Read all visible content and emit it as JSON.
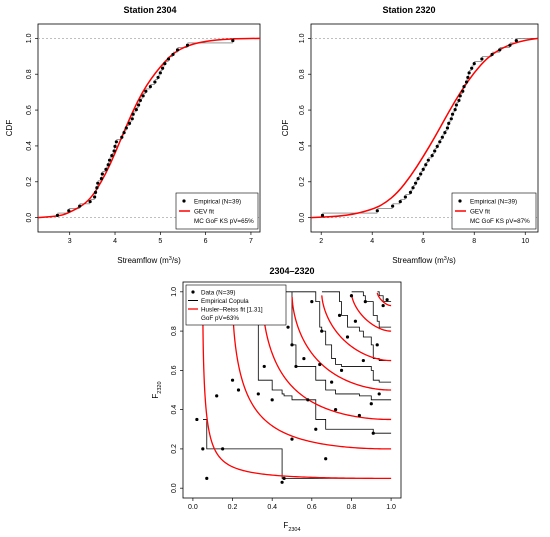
{
  "chart_data": [
    {
      "type": "line",
      "title": "Station 2304",
      "xlabel": "Streamflow (m³/s)",
      "ylabel": "CDF",
      "xlim": [
        2.3,
        7.2
      ],
      "ylim": [
        -0.08,
        1.08
      ],
      "xticks": [
        3,
        4,
        5,
        6,
        7
      ],
      "yticks": [
        0.0,
        0.2,
        0.4,
        0.6,
        0.8,
        1.0
      ],
      "grid": false,
      "legend_position": "bottom-right",
      "legend": {
        "empirical": "Empirical (N=39)",
        "fit": "GEV fit",
        "gof": "MC GoF KS pV=65%"
      },
      "empirical_x": [
        2.73,
        2.98,
        3.22,
        3.45,
        3.55,
        3.57,
        3.6,
        3.62,
        3.7,
        3.72,
        3.8,
        3.85,
        3.88,
        3.93,
        3.98,
        4.0,
        4.03,
        4.15,
        4.2,
        4.25,
        4.32,
        4.38,
        4.4,
        4.47,
        4.52,
        4.56,
        4.62,
        4.68,
        4.78,
        4.88,
        4.95,
        5.0,
        5.05,
        5.1,
        5.18,
        5.28,
        5.38,
        5.6,
        6.6
      ],
      "gev_fit": [
        {
          "x": 2.3,
          "y": 0.0
        },
        {
          "x": 2.8,
          "y": 0.01
        },
        {
          "x": 3.0,
          "y": 0.03
        },
        {
          "x": 3.3,
          "y": 0.07
        },
        {
          "x": 3.5,
          "y": 0.12
        },
        {
          "x": 3.7,
          "y": 0.2
        },
        {
          "x": 3.9,
          "y": 0.3
        },
        {
          "x": 4.1,
          "y": 0.42
        },
        {
          "x": 4.3,
          "y": 0.54
        },
        {
          "x": 4.5,
          "y": 0.65
        },
        {
          "x": 4.7,
          "y": 0.74
        },
        {
          "x": 4.9,
          "y": 0.81
        },
        {
          "x": 5.1,
          "y": 0.87
        },
        {
          "x": 5.3,
          "y": 0.92
        },
        {
          "x": 5.6,
          "y": 0.96
        },
        {
          "x": 6.0,
          "y": 0.985
        },
        {
          "x": 6.5,
          "y": 0.997
        },
        {
          "x": 7.2,
          "y": 1.0
        }
      ]
    },
    {
      "type": "line",
      "title": "Station 2320",
      "xlabel": "Streamflow (m³/s)",
      "ylabel": "CDF",
      "xlim": [
        1.6,
        10.5
      ],
      "ylim": [
        -0.08,
        1.08
      ],
      "xticks": [
        2,
        4,
        6,
        8,
        10
      ],
      "yticks": [
        0.0,
        0.2,
        0.4,
        0.6,
        0.8,
        1.0
      ],
      "grid": false,
      "legend_position": "bottom-right",
      "legend": {
        "empirical": "Empirical (N=39)",
        "fit": "GEV fit",
        "gof": "MC GoF KS pV=87%"
      },
      "empirical_x": [
        2.05,
        4.2,
        4.8,
        5.1,
        5.3,
        5.5,
        5.6,
        5.7,
        5.8,
        5.9,
        6.0,
        6.1,
        6.2,
        6.35,
        6.45,
        6.55,
        6.65,
        6.75,
        6.85,
        6.95,
        7.0,
        7.1,
        7.15,
        7.25,
        7.3,
        7.4,
        7.45,
        7.55,
        7.6,
        7.7,
        7.75,
        7.8,
        7.9,
        8.0,
        8.3,
        8.7,
        9.0,
        9.4,
        9.65
      ],
      "gev_fit": [
        {
          "x": 1.6,
          "y": 0.0
        },
        {
          "x": 3.0,
          "y": 0.01
        },
        {
          "x": 4.0,
          "y": 0.045
        },
        {
          "x": 4.5,
          "y": 0.08
        },
        {
          "x": 5.0,
          "y": 0.14
        },
        {
          "x": 5.5,
          "y": 0.23
        },
        {
          "x": 6.0,
          "y": 0.34
        },
        {
          "x": 6.5,
          "y": 0.46
        },
        {
          "x": 7.0,
          "y": 0.59
        },
        {
          "x": 7.5,
          "y": 0.71
        },
        {
          "x": 8.0,
          "y": 0.81
        },
        {
          "x": 8.5,
          "y": 0.89
        },
        {
          "x": 9.0,
          "y": 0.94
        },
        {
          "x": 9.5,
          "y": 0.97
        },
        {
          "x": 10.0,
          "y": 0.99
        },
        {
          "x": 10.5,
          "y": 1.0
        }
      ]
    },
    {
      "type": "scatter",
      "title": "2304–2320",
      "xlabel": "F",
      "xlabel_sub": "2304",
      "ylabel": "F",
      "ylabel_sub": "2320",
      "xlim": [
        -0.05,
        1.05
      ],
      "ylim": [
        -0.05,
        1.05
      ],
      "xticks": [
        0.0,
        0.2,
        0.4,
        0.6,
        0.8,
        1.0
      ],
      "yticks": [
        0.0,
        0.2,
        0.4,
        0.6,
        0.8,
        1.0
      ],
      "grid": false,
      "legend_position": "top-left",
      "legend": {
        "data": "Data (N=39)",
        "copula": "Empirical Copula",
        "fit": "Husler–Reiss fit [1.31]",
        "gof": "GoF pV=63%"
      },
      "data_points": [
        {
          "x": 0.07,
          "y": 0.05
        },
        {
          "x": 0.05,
          "y": 0.2
        },
        {
          "x": 0.02,
          "y": 0.35
        },
        {
          "x": 0.15,
          "y": 0.2
        },
        {
          "x": 0.12,
          "y": 0.47
        },
        {
          "x": 0.23,
          "y": 0.5
        },
        {
          "x": 0.2,
          "y": 0.55
        },
        {
          "x": 0.33,
          "y": 0.48
        },
        {
          "x": 0.36,
          "y": 0.62
        },
        {
          "x": 0.4,
          "y": 0.45
        },
        {
          "x": 0.46,
          "y": 0.05
        },
        {
          "x": 0.45,
          "y": 0.03
        },
        {
          "x": 0.48,
          "y": 0.82
        },
        {
          "x": 0.5,
          "y": 0.73
        },
        {
          "x": 0.52,
          "y": 0.62
        },
        {
          "x": 0.5,
          "y": 0.25
        },
        {
          "x": 0.56,
          "y": 0.66
        },
        {
          "x": 0.58,
          "y": 0.45
        },
        {
          "x": 0.6,
          "y": 0.95
        },
        {
          "x": 0.62,
          "y": 0.3
        },
        {
          "x": 0.64,
          "y": 0.63
        },
        {
          "x": 0.65,
          "y": 0.8
        },
        {
          "x": 0.67,
          "y": 0.15
        },
        {
          "x": 0.7,
          "y": 0.54
        },
        {
          "x": 0.72,
          "y": 0.4
        },
        {
          "x": 0.74,
          "y": 0.88
        },
        {
          "x": 0.75,
          "y": 0.6
        },
        {
          "x": 0.78,
          "y": 0.77
        },
        {
          "x": 0.8,
          "y": 0.98
        },
        {
          "x": 0.82,
          "y": 0.85
        },
        {
          "x": 0.84,
          "y": 0.37
        },
        {
          "x": 0.86,
          "y": 0.65
        },
        {
          "x": 0.87,
          "y": 0.95
        },
        {
          "x": 0.9,
          "y": 0.43
        },
        {
          "x": 0.91,
          "y": 0.28
        },
        {
          "x": 0.93,
          "y": 0.73
        },
        {
          "x": 0.94,
          "y": 0.48
        },
        {
          "x": 0.96,
          "y": 0.93
        },
        {
          "x": 0.98,
          "y": 0.96
        }
      ],
      "copula_levels": [
        0.05,
        0.2,
        0.35,
        0.5,
        0.65,
        0.8,
        0.93
      ],
      "colors": {
        "fit": "#ff0000",
        "data": "#000000",
        "frame": "#000000"
      }
    }
  ]
}
